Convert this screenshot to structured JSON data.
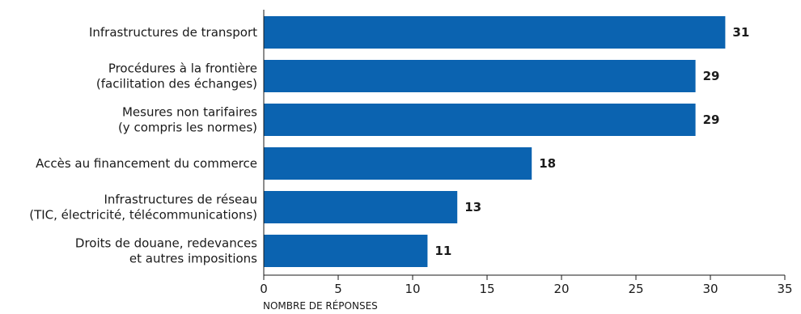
{
  "chart_data": {
    "type": "bar",
    "orientation": "horizontal",
    "categories": [
      [
        "Infrastructures de transport"
      ],
      [
        "Procédures à la frontière",
        "(facilitation des échanges)"
      ],
      [
        "Mesures non tarifaires",
        "(y compris les normes)"
      ],
      [
        "Accès au financement du commerce"
      ],
      [
        "Infrastructures de réseau",
        "(TIC, électricité, télécommunications)"
      ],
      [
        "Droits de douane, redevances",
        "et autres impositions"
      ]
    ],
    "values": [
      31,
      29,
      29,
      18,
      13,
      11
    ],
    "value_labels": [
      "31",
      "29",
      "29",
      "18",
      "13",
      "11"
    ],
    "xlabel": "NOMBRE DE RÉPONSES",
    "ylabel": "",
    "title": "",
    "xlim": [
      0,
      35
    ],
    "xticks": [
      0,
      5,
      10,
      15,
      20,
      25,
      30,
      35
    ],
    "grid": false,
    "legend": "none",
    "colors": {
      "bar": "#0b63b0",
      "axis": "#1a1a1a",
      "text": "#1a1a1a"
    }
  }
}
